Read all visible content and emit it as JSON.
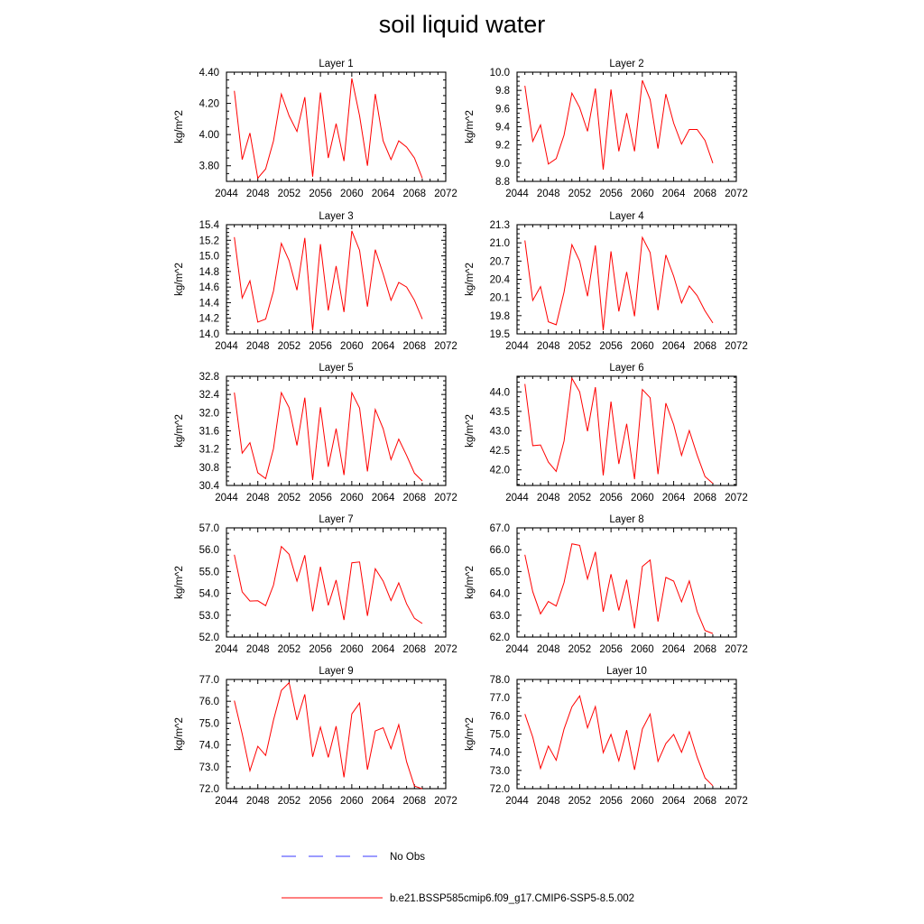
{
  "title": "soil liquid water",
  "legend": {
    "placement": "bottom",
    "entries": [
      {
        "label": "No Obs",
        "color": "#3a3aff",
        "dash": true
      },
      {
        "label": "b.e21.BSSP585cmip6.f09_g17.CMIP6-SSP5-8.5.002",
        "color": "#ff0000",
        "dash": false
      }
    ]
  },
  "chart_data": [
    {
      "type": "line",
      "title": "Layer 1",
      "ylabel": "kg/m^2",
      "xlim": [
        2044,
        2072
      ],
      "ylim": [
        3.7,
        4.4
      ],
      "yticks": [
        "3.80",
        "4.00",
        "4.20",
        "4.40"
      ],
      "xticks": [
        "2044",
        "2048",
        "2052",
        "2056",
        "2060",
        "2064",
        "2068",
        "2072"
      ],
      "series": [
        {
          "color": "#ff0000",
          "x": [
            2045,
            2046,
            2047,
            2048,
            2049,
            2050,
            2051,
            2052,
            2053,
            2054,
            2055,
            2056,
            2057,
            2058,
            2059,
            2060,
            2061,
            2062,
            2063,
            2064,
            2065,
            2066,
            2067,
            2068,
            2069
          ],
          "values": [
            4.28,
            3.84,
            4.01,
            3.72,
            3.78,
            3.96,
            4.26,
            4.12,
            4.02,
            4.24,
            3.73,
            4.27,
            3.85,
            4.07,
            3.83,
            4.36,
            4.12,
            3.8,
            4.26,
            3.96,
            3.84,
            3.96,
            3.92,
            3.85,
            3.72
          ]
        }
      ]
    },
    {
      "type": "line",
      "title": "Layer 2",
      "ylabel": "kg/m^2",
      "xlim": [
        2044,
        2072
      ],
      "ylim": [
        8.8,
        10.0
      ],
      "yticks": [
        "8.8",
        "9.0",
        "9.2",
        "9.4",
        "9.6",
        "9.8",
        "10.0"
      ],
      "xticks": [
        "2044",
        "2048",
        "2052",
        "2056",
        "2060",
        "2064",
        "2068",
        "2072"
      ],
      "series": [
        {
          "color": "#ff0000",
          "x": [
            2045,
            2046,
            2047,
            2048,
            2049,
            2050,
            2051,
            2052,
            2053,
            2054,
            2055,
            2056,
            2057,
            2058,
            2059,
            2060,
            2061,
            2062,
            2063,
            2064,
            2065,
            2066,
            2067,
            2068,
            2069
          ],
          "values": [
            9.85,
            9.24,
            9.42,
            8.99,
            9.05,
            9.31,
            9.77,
            9.61,
            9.35,
            9.82,
            8.93,
            9.81,
            9.13,
            9.55,
            9.13,
            9.91,
            9.7,
            9.16,
            9.76,
            9.44,
            9.21,
            9.37,
            9.37,
            9.25,
            9.0
          ]
        }
      ]
    },
    {
      "type": "line",
      "title": "Layer 3",
      "ylabel": "kg/m^2",
      "xlim": [
        2044,
        2072
      ],
      "ylim": [
        14.0,
        15.4
      ],
      "yticks": [
        "14.0",
        "14.2",
        "14.4",
        "14.6",
        "14.8",
        "15.0",
        "15.2",
        "15.4"
      ],
      "xticks": [
        "2044",
        "2048",
        "2052",
        "2056",
        "2060",
        "2064",
        "2068",
        "2072"
      ],
      "series": [
        {
          "color": "#ff0000",
          "x": [
            2045,
            2046,
            2047,
            2048,
            2049,
            2050,
            2051,
            2052,
            2053,
            2054,
            2055,
            2056,
            2057,
            2058,
            2059,
            2060,
            2061,
            2062,
            2063,
            2064,
            2065,
            2066,
            2067,
            2068,
            2069
          ],
          "values": [
            15.24,
            14.46,
            14.68,
            14.15,
            14.19,
            14.55,
            15.16,
            14.94,
            14.56,
            15.23,
            14.04,
            15.15,
            14.3,
            14.87,
            14.28,
            15.32,
            15.07,
            14.35,
            15.08,
            14.77,
            14.43,
            14.66,
            14.6,
            14.43,
            14.19
          ]
        }
      ]
    },
    {
      "type": "line",
      "title": "Layer 4",
      "ylabel": "kg/m^2",
      "xlim": [
        2044,
        2072
      ],
      "ylim": [
        19.5,
        21.3
      ],
      "yticks": [
        "19.5",
        "19.8",
        "20.1",
        "20.4",
        "20.7",
        "21.0",
        "21.3"
      ],
      "xticks": [
        "2044",
        "2048",
        "2052",
        "2056",
        "2060",
        "2064",
        "2068",
        "2072"
      ],
      "series": [
        {
          "color": "#ff0000",
          "x": [
            2045,
            2046,
            2047,
            2048,
            2049,
            2050,
            2051,
            2052,
            2053,
            2054,
            2055,
            2056,
            2057,
            2058,
            2059,
            2060,
            2061,
            2062,
            2063,
            2064,
            2065,
            2066,
            2067,
            2068,
            2069
          ],
          "values": [
            21.04,
            20.05,
            20.28,
            19.7,
            19.65,
            20.19,
            20.97,
            20.7,
            20.12,
            20.96,
            19.56,
            20.86,
            19.87,
            20.52,
            19.79,
            21.09,
            20.84,
            19.89,
            20.8,
            20.45,
            20.01,
            20.29,
            20.13,
            19.88,
            19.68
          ]
        }
      ]
    },
    {
      "type": "line",
      "title": "Layer 5",
      "ylabel": "kg/m^2",
      "xlim": [
        2044,
        2072
      ],
      "ylim": [
        30.4,
        32.8
      ],
      "yticks": [
        "30.4",
        "30.8",
        "31.2",
        "31.6",
        "32.0",
        "32.4",
        "32.8"
      ],
      "xticks": [
        "2044",
        "2048",
        "2052",
        "2056",
        "2060",
        "2064",
        "2068",
        "2072"
      ],
      "series": [
        {
          "color": "#ff0000",
          "x": [
            2045,
            2046,
            2047,
            2048,
            2049,
            2050,
            2051,
            2052,
            2053,
            2054,
            2055,
            2056,
            2057,
            2058,
            2059,
            2060,
            2061,
            2062,
            2063,
            2064,
            2065,
            2066,
            2067,
            2068,
            2069
          ],
          "values": [
            32.44,
            31.11,
            31.34,
            30.68,
            30.55,
            31.21,
            32.44,
            32.11,
            31.28,
            32.33,
            30.52,
            32.12,
            30.81,
            31.65,
            30.63,
            32.44,
            32.1,
            30.71,
            32.07,
            31.65,
            30.97,
            31.42,
            31.06,
            30.67,
            30.5
          ]
        }
      ]
    },
    {
      "type": "line",
      "title": "Layer 6",
      "ylabel": "kg/m^2",
      "xlim": [
        2044,
        2072
      ],
      "ylim": [
        41.6,
        44.4
      ],
      "yticks": [
        "42.0",
        "42.5",
        "43.0",
        "43.5",
        "44.0"
      ],
      "xticks": [
        "2044",
        "2048",
        "2052",
        "2056",
        "2060",
        "2064",
        "2068",
        "2072"
      ],
      "series": [
        {
          "color": "#ff0000",
          "x": [
            2045,
            2046,
            2047,
            2048,
            2049,
            2050,
            2051,
            2052,
            2053,
            2054,
            2055,
            2056,
            2057,
            2058,
            2059,
            2060,
            2061,
            2062,
            2063,
            2064,
            2065,
            2066,
            2067,
            2068,
            2069
          ],
          "values": [
            44.2,
            42.62,
            42.64,
            42.2,
            41.96,
            42.74,
            44.35,
            44.0,
            42.99,
            44.12,
            41.86,
            43.75,
            42.15,
            43.18,
            41.76,
            44.06,
            43.85,
            41.89,
            43.71,
            43.16,
            42.37,
            43.01,
            42.38,
            41.83,
            41.65
          ]
        }
      ]
    },
    {
      "type": "line",
      "title": "Layer 7",
      "ylabel": "kg/m^2",
      "xlim": [
        2044,
        2072
      ],
      "ylim": [
        52.0,
        57.0
      ],
      "yticks": [
        "52.0",
        "53.0",
        "54.0",
        "55.0",
        "56.0",
        "57.0"
      ],
      "xticks": [
        "2044",
        "2048",
        "2052",
        "2056",
        "2060",
        "2064",
        "2068",
        "2072"
      ],
      "series": [
        {
          "color": "#ff0000",
          "x": [
            2045,
            2046,
            2047,
            2048,
            2049,
            2050,
            2051,
            2052,
            2053,
            2054,
            2055,
            2056,
            2057,
            2058,
            2059,
            2060,
            2061,
            2062,
            2063,
            2064,
            2065,
            2066,
            2067,
            2068,
            2069
          ],
          "values": [
            55.77,
            54.07,
            53.65,
            53.66,
            53.44,
            54.38,
            56.15,
            55.79,
            54.56,
            55.75,
            53.18,
            55.22,
            53.45,
            54.61,
            52.78,
            55.4,
            55.44,
            52.97,
            55.13,
            54.56,
            53.67,
            54.48,
            53.52,
            52.86,
            52.62
          ]
        }
      ]
    },
    {
      "type": "line",
      "title": "Layer 8",
      "ylabel": "kg/m^2",
      "xlim": [
        2044,
        2072
      ],
      "ylim": [
        62.0,
        67.0
      ],
      "yticks": [
        "62.0",
        "63.0",
        "64.0",
        "65.0",
        "66.0",
        "67.0"
      ],
      "xticks": [
        "2044",
        "2048",
        "2052",
        "2056",
        "2060",
        "2064",
        "2068",
        "2072"
      ],
      "series": [
        {
          "color": "#ff0000",
          "x": [
            2045,
            2046,
            2047,
            2048,
            2049,
            2050,
            2051,
            2052,
            2053,
            2054,
            2055,
            2056,
            2057,
            2058,
            2059,
            2060,
            2061,
            2062,
            2063,
            2064,
            2065,
            2066,
            2067,
            2068,
            2069
          ],
          "values": [
            65.77,
            64.08,
            63.06,
            63.63,
            63.42,
            64.5,
            66.27,
            66.2,
            64.66,
            65.9,
            63.16,
            64.88,
            63.22,
            64.63,
            62.4,
            65.23,
            65.53,
            62.71,
            64.73,
            64.56,
            63.61,
            64.57,
            63.16,
            62.3,
            62.16
          ]
        }
      ]
    },
    {
      "type": "line",
      "title": "Layer 9",
      "ylabel": "kg/m^2",
      "xlim": [
        2044,
        2072
      ],
      "ylim": [
        72.0,
        77.0
      ],
      "yticks": [
        "72.0",
        "73.0",
        "74.0",
        "75.0",
        "76.0",
        "77.0"
      ],
      "xticks": [
        "2044",
        "2048",
        "2052",
        "2056",
        "2060",
        "2064",
        "2068",
        "2072"
      ],
      "series": [
        {
          "color": "#ff0000",
          "x": [
            2045,
            2046,
            2047,
            2048,
            2049,
            2050,
            2051,
            2052,
            2053,
            2054,
            2055,
            2056,
            2057,
            2058,
            2059,
            2060,
            2061,
            2062,
            2063,
            2064,
            2065,
            2066,
            2067,
            2068,
            2069
          ],
          "values": [
            76.03,
            74.51,
            72.82,
            73.94,
            73.52,
            75.14,
            76.5,
            76.85,
            75.14,
            76.32,
            73.46,
            74.82,
            73.43,
            74.86,
            72.52,
            75.42,
            75.92,
            72.87,
            74.64,
            74.79,
            73.83,
            74.93,
            73.23,
            72.12,
            71.99
          ]
        }
      ]
    },
    {
      "type": "line",
      "title": "Layer 10",
      "ylabel": "kg/m^2",
      "xlim": [
        2044,
        2072
      ],
      "ylim": [
        72.0,
        78.0
      ],
      "yticks": [
        "72.0",
        "73.0",
        "74.0",
        "75.0",
        "76.0",
        "77.0",
        "78.0"
      ],
      "xticks": [
        "2044",
        "2048",
        "2052",
        "2056",
        "2060",
        "2064",
        "2068",
        "2072"
      ],
      "series": [
        {
          "color": "#ff0000",
          "x": [
            2045,
            2046,
            2047,
            2048,
            2049,
            2050,
            2051,
            2052,
            2053,
            2054,
            2055,
            2056,
            2057,
            2058,
            2059,
            2060,
            2061,
            2062,
            2063,
            2064,
            2065,
            2066,
            2067,
            2068,
            2069
          ],
          "values": [
            76.1,
            74.83,
            73.11,
            74.34,
            73.56,
            75.28,
            76.5,
            77.1,
            75.34,
            76.51,
            73.98,
            74.98,
            73.53,
            75.22,
            73.03,
            75.28,
            76.1,
            73.5,
            74.48,
            74.98,
            74.0,
            75.13,
            73.73,
            72.59,
            72.16
          ]
        }
      ]
    }
  ]
}
